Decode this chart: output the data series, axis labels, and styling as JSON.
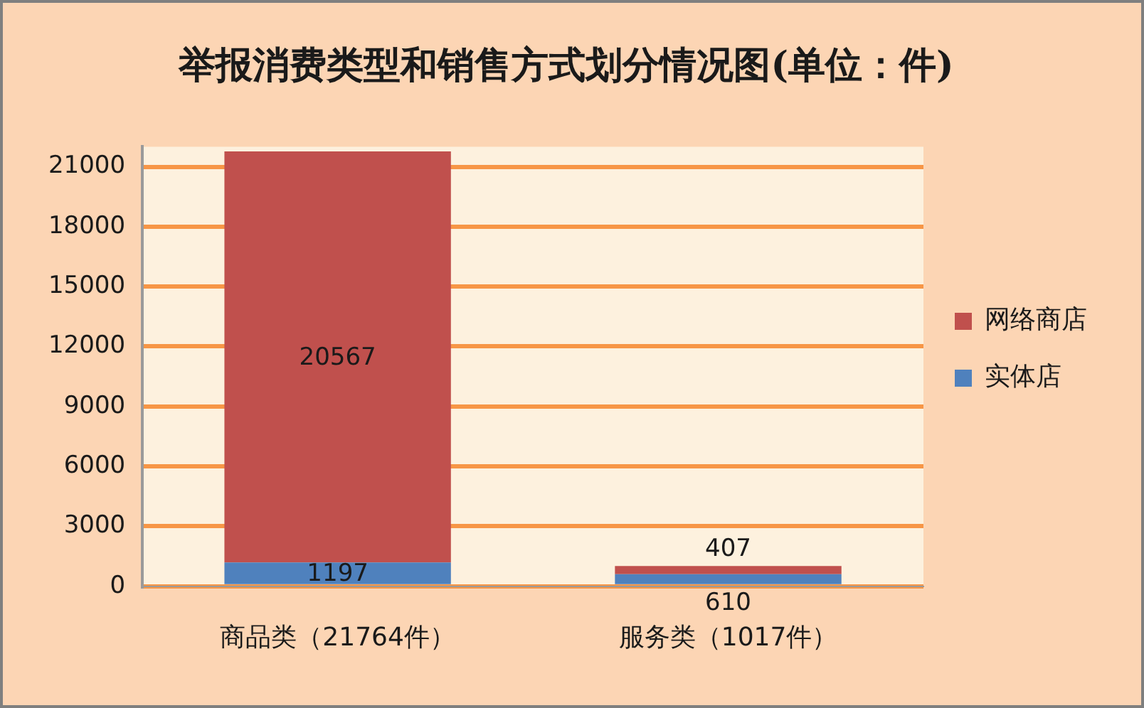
{
  "chart_data": {
    "type": "bar",
    "title": "举报消费类型和销售方式划分情况图(单位：件)",
    "categories": [
      "商品类（21764件）",
      "服务类（1017件）"
    ],
    "series": [
      {
        "name": "实体店",
        "color": "#4f81bd",
        "values": [
          1197,
          610
        ]
      },
      {
        "name": "网络商店",
        "color": "#c0504d",
        "values": [
          20567,
          407
        ]
      }
    ],
    "stacked": true,
    "ylim": [
      0,
      22000
    ],
    "yticks": [
      0,
      3000,
      6000,
      9000,
      12000,
      15000,
      18000,
      21000
    ],
    "grid": "y",
    "legend": "right",
    "data_labels": true
  }
}
